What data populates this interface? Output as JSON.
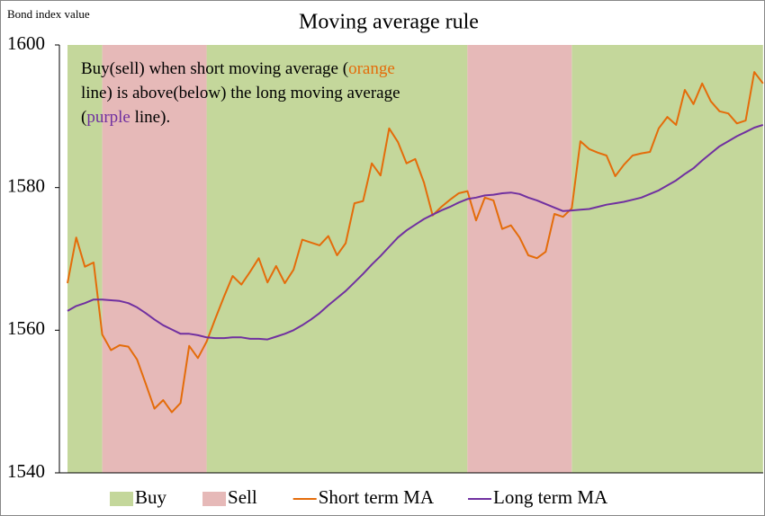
{
  "chart_data": {
    "type": "line",
    "title": "Moving average rule",
    "y_label": "Bond index value",
    "ylim": [
      1540,
      1600
    ],
    "yticks": [
      1540,
      1560,
      1580,
      1600
    ],
    "annotation": [
      [
        {
          "text": "Buy(sell) when short moving average ("
        },
        {
          "text": "orange",
          "color": "#e46c0a"
        }
      ],
      [
        {
          "text": "line) is above(below) the long moving average"
        }
      ],
      [
        {
          "text": "("
        },
        {
          "text": "purple",
          "color": "#7030a0"
        },
        {
          "text": " line)."
        }
      ]
    ],
    "shading": [
      {
        "name": "Buy",
        "color": "#c4d79b",
        "spans": [
          [
            0,
            4
          ],
          [
            16,
            46
          ],
          [
            58,
            80
          ]
        ]
      },
      {
        "name": "Sell",
        "color": "#e6b9b8",
        "spans": [
          [
            4,
            16
          ],
          [
            46,
            58
          ]
        ]
      }
    ],
    "series": [
      {
        "name": "Short term MA",
        "color": "#e46c0a",
        "values": [
          1566.6,
          1573.0,
          1568.9,
          1569.5,
          1559.4,
          1557.2,
          1557.9,
          1557.7,
          1555.9,
          1552.5,
          1549.0,
          1550.2,
          1548.5,
          1549.8,
          1557.8,
          1556.1,
          1558.4,
          1561.6,
          1564.7,
          1567.6,
          1566.4,
          1568.2,
          1570.1,
          1566.7,
          1569.0,
          1566.6,
          1568.5,
          1572.7,
          1572.3,
          1571.9,
          1573.2,
          1570.5,
          1572.2,
          1577.8,
          1578.1,
          1583.4,
          1581.7,
          1588.3,
          1586.4,
          1583.4,
          1584.0,
          1580.7,
          1576.1,
          1577.3,
          1578.3,
          1579.2,
          1579.5,
          1575.4,
          1578.6,
          1578.2,
          1574.2,
          1574.7,
          1573.0,
          1570.5,
          1570.1,
          1571.0,
          1576.3,
          1575.9,
          1577.1,
          1586.5,
          1585.4,
          1584.9,
          1584.5,
          1581.6,
          1583.2,
          1584.5,
          1584.8,
          1585.0,
          1588.3,
          1589.9,
          1588.8,
          1593.7,
          1591.7,
          1594.6,
          1592.1,
          1590.7,
          1590.4,
          1589.0,
          1589.4,
          1596.2,
          1594.6
        ]
      },
      {
        "name": "Long term MA",
        "color": "#7030a0",
        "values": [
          1562.7,
          1563.4,
          1563.8,
          1564.3,
          1564.3,
          1564.2,
          1564.1,
          1563.8,
          1563.2,
          1562.4,
          1561.5,
          1560.7,
          1560.1,
          1559.5,
          1559.5,
          1559.3,
          1559.0,
          1558.9,
          1558.9,
          1559.0,
          1559.0,
          1558.8,
          1558.8,
          1558.7,
          1559.1,
          1559.5,
          1560.0,
          1560.7,
          1561.5,
          1562.4,
          1563.5,
          1564.5,
          1565.5,
          1566.7,
          1567.9,
          1569.2,
          1570.4,
          1571.7,
          1573.0,
          1574.0,
          1574.8,
          1575.6,
          1576.2,
          1576.8,
          1577.3,
          1577.9,
          1578.4,
          1578.6,
          1578.9,
          1579.0,
          1579.2,
          1579.3,
          1579.1,
          1578.6,
          1578.2,
          1577.7,
          1577.2,
          1576.7,
          1576.8,
          1576.9,
          1577.0,
          1577.3,
          1577.6,
          1577.8,
          1578.0,
          1578.3,
          1578.6,
          1579.1,
          1579.6,
          1580.3,
          1581.0,
          1581.9,
          1582.7,
          1583.8,
          1584.8,
          1585.8,
          1586.5,
          1587.2,
          1587.8,
          1588.4,
          1588.8
        ]
      }
    ]
  }
}
